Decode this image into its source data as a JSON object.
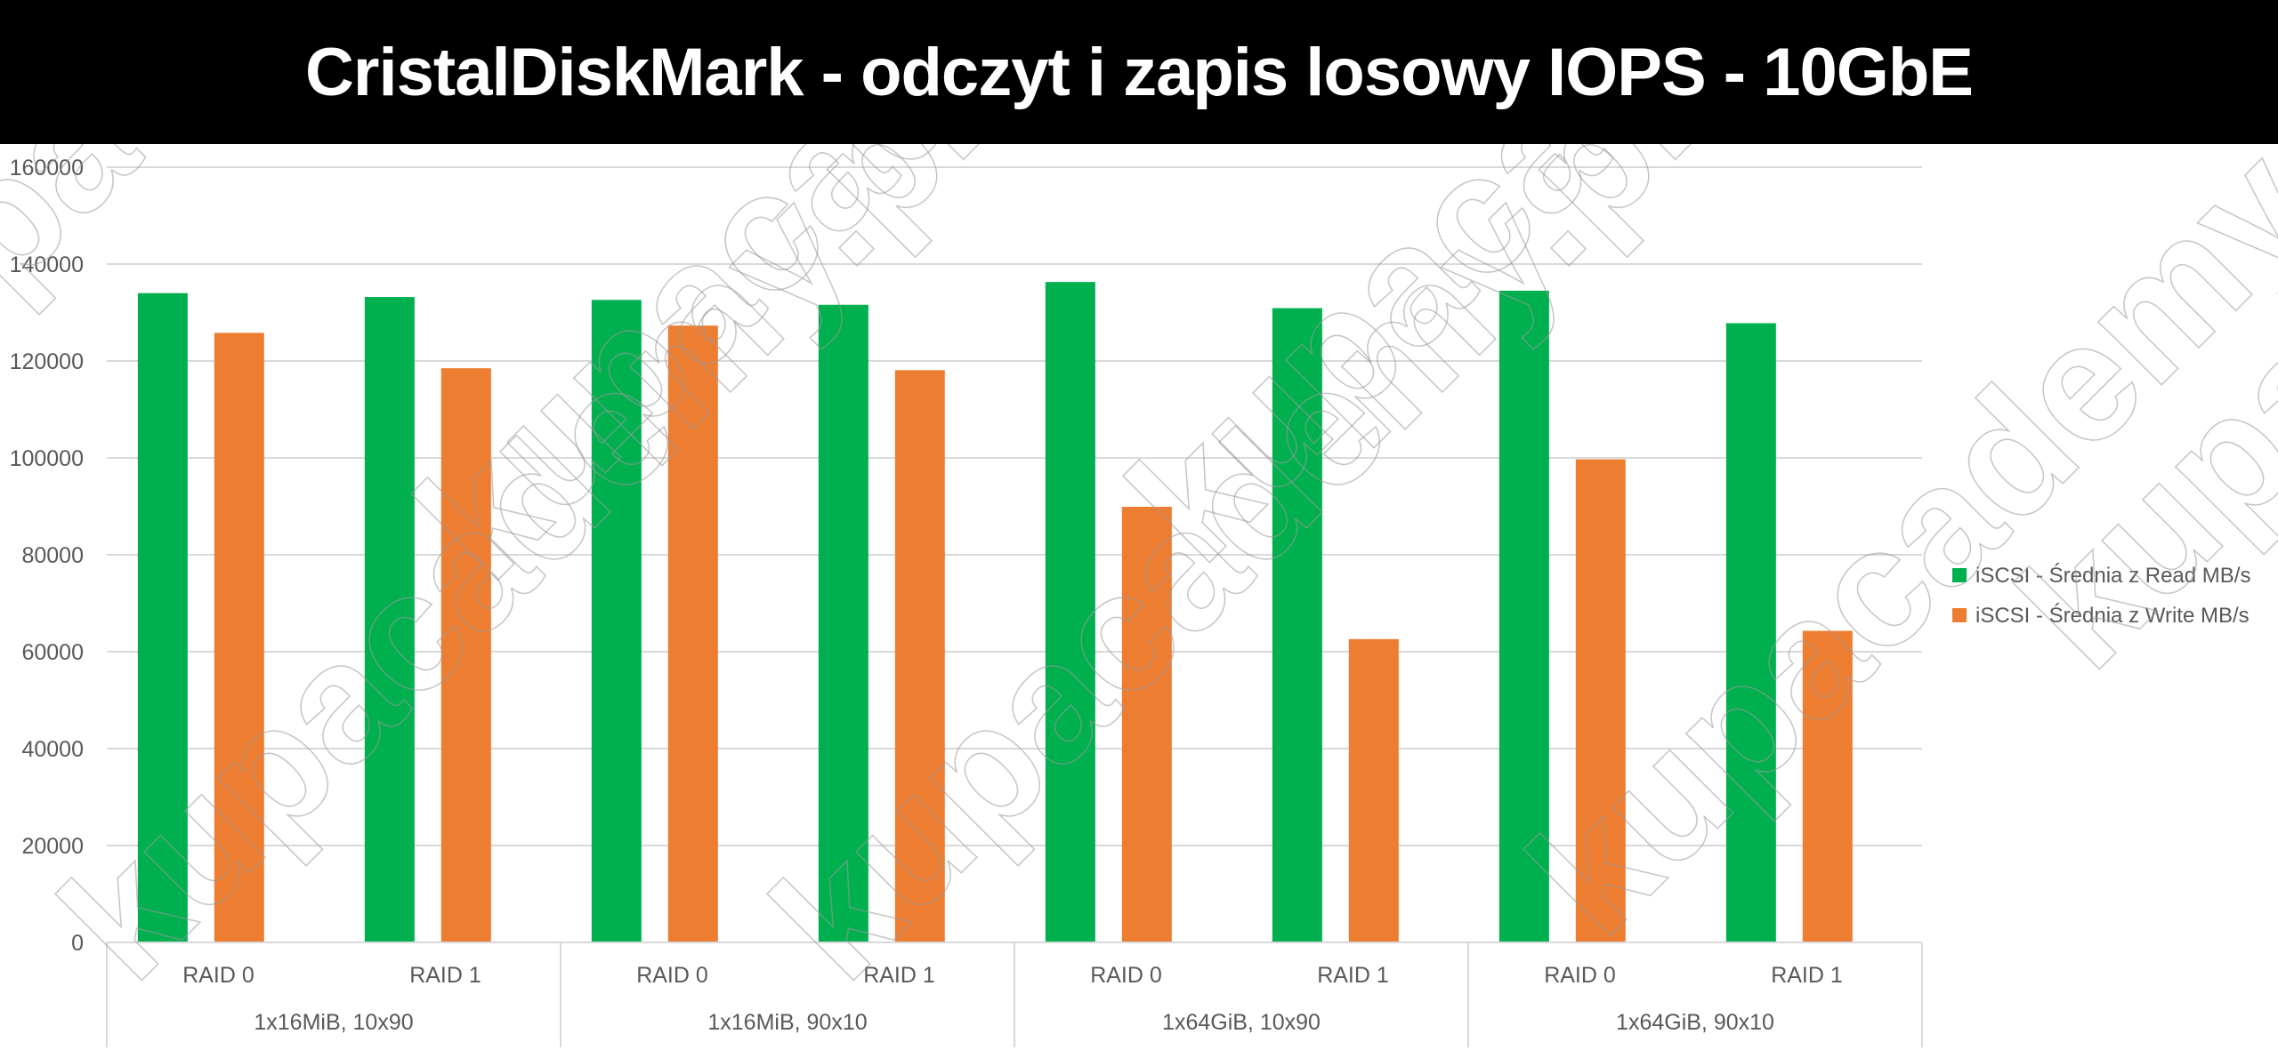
{
  "chart_data": {
    "type": "bar",
    "title": "CristalDiskMark - odczyt i zapis losowy IOPS - 10GbE",
    "xlabel": "",
    "ylabel": "",
    "ylim": [
      0,
      160000
    ],
    "yticks": [
      "0",
      "20000",
      "40000",
      "60000",
      "80000",
      "100000",
      "120000",
      "140000",
      "160000"
    ],
    "ytick_values": [
      0,
      20000,
      40000,
      60000,
      80000,
      100000,
      120000,
      140000,
      160000
    ],
    "grid": true,
    "legend_position": "right",
    "groups": [
      "1x16MiB, 10x90",
      "1x16MiB, 90x10",
      "1x64GiB, 10x90",
      "1x64GiB, 90x10"
    ],
    "categories": [
      "RAID 0",
      "RAID 1",
      "RAID 0",
      "RAID 1",
      "RAID 0",
      "RAID 1",
      "RAID 0",
      "RAID 1"
    ],
    "series": [
      {
        "name": "iSCSI - Średnia z Read MB/s",
        "color": "#00b04f",
        "values": [
          134000,
          133200,
          132600,
          131600,
          136300,
          130900,
          134500,
          127800
        ]
      },
      {
        "name": "iSCSI - Średnia z Write MB/s",
        "color": "#ed7d31",
        "values": [
          125800,
          118500,
          127300,
          118100,
          89900,
          62600,
          99700,
          64300
        ]
      }
    ]
  },
  "watermark": {
    "text": "kupacademy.pl"
  }
}
